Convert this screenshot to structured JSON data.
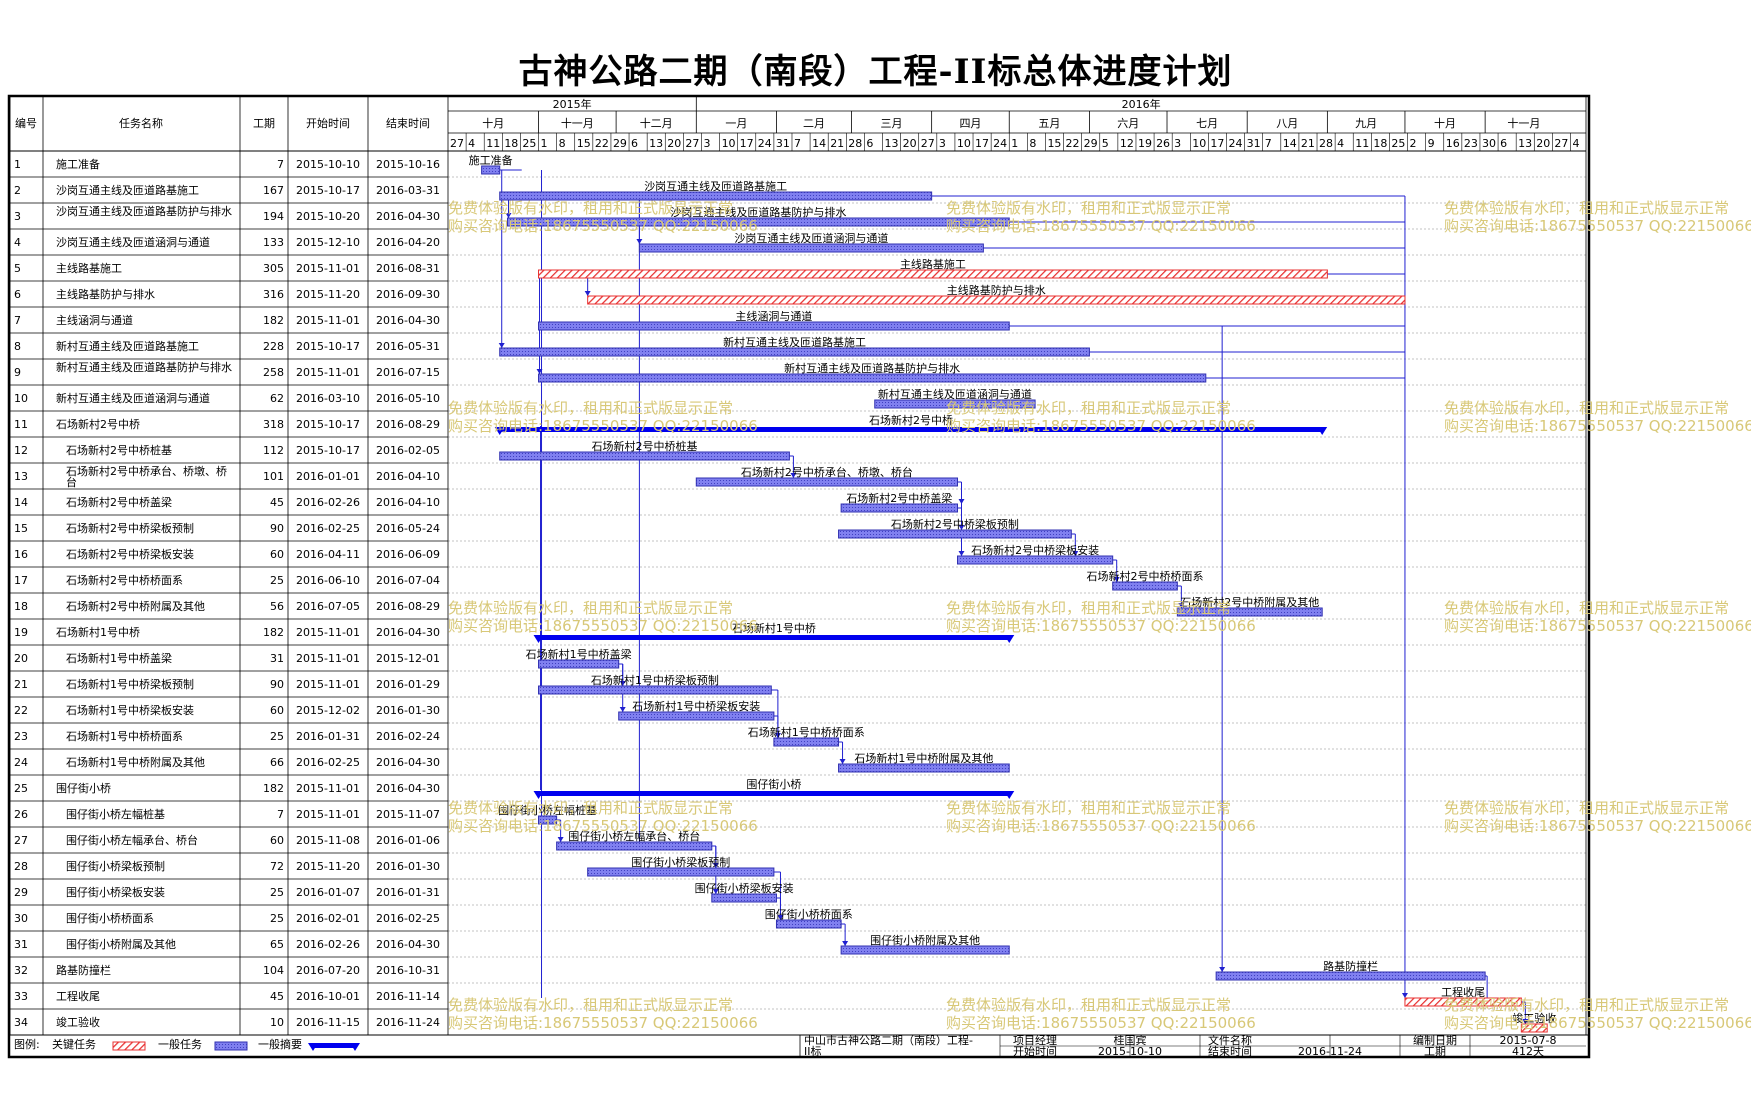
{
  "title": "古神公路二期（南段）工程-II标总体进度计划",
  "columns": {
    "id": "编号",
    "name": "任务名称",
    "duration": "工期",
    "start": "开始时间",
    "end": "结束时间"
  },
  "timeline": {
    "years": [
      "2015年",
      "2016年"
    ],
    "months": [
      "十月",
      "十一月",
      "十二月",
      "一月",
      "二月",
      "三月",
      "四月",
      "五月",
      "六月",
      "七月",
      "八月",
      "九月",
      "十月",
      "十一月"
    ],
    "days": [
      "27",
      "4",
      "11",
      "18",
      "25",
      "1",
      "8",
      "15",
      "22",
      "29",
      "6",
      "13",
      "20",
      "27",
      "3",
      "10",
      "17",
      "24",
      "31",
      "7",
      "14",
      "21",
      "28",
      "6",
      "13",
      "20",
      "27",
      "3",
      "10",
      "17",
      "24",
      "1",
      "8",
      "15",
      "22",
      "29",
      "5",
      "12",
      "19",
      "26",
      "3",
      "10",
      "17",
      "24",
      "31",
      "7",
      "14",
      "21",
      "28",
      "4",
      "11",
      "18",
      "25",
      "2",
      "9",
      "16",
      "23",
      "30",
      "6",
      "13",
      "20",
      "27",
      "4"
    ]
  },
  "chart_data": {
    "type": "gantt",
    "x_axis": "date",
    "xlim": [
      "2015-09-27",
      "2016-12-10"
    ],
    "series_legend": [
      "关键任务",
      "一般任务",
      "一般摘要"
    ],
    "tasks": [
      {
        "id": "1",
        "name": "施工准备",
        "duration": "7",
        "start": "2015-10-10",
        "end": "2015-10-16",
        "type": "normal",
        "indent": 0
      },
      {
        "id": "2",
        "name": "沙岗互通主线及匝道路基施工",
        "duration": "167",
        "start": "2015-10-17",
        "end": "2016-03-31",
        "type": "normal",
        "indent": 0
      },
      {
        "id": "3",
        "name": "沙岗互通主线及匝道路基防护与排水",
        "duration": "194",
        "start": "2015-10-20",
        "end": "2016-04-30",
        "type": "normal",
        "indent": 0
      },
      {
        "id": "4",
        "name": "沙岗互通主线及匝道涵洞与通道",
        "duration": "133",
        "start": "2015-12-10",
        "end": "2016-04-20",
        "type": "normal",
        "indent": 0
      },
      {
        "id": "5",
        "name": "主线路基施工",
        "duration": "305",
        "start": "2015-11-01",
        "end": "2016-08-31",
        "type": "critical",
        "indent": 0
      },
      {
        "id": "6",
        "name": "主线路基防护与排水",
        "duration": "316",
        "start": "2015-11-20",
        "end": "2016-09-30",
        "type": "critical",
        "indent": 0
      },
      {
        "id": "7",
        "name": "主线涵洞与通道",
        "duration": "182",
        "start": "2015-11-01",
        "end": "2016-04-30",
        "type": "normal",
        "indent": 0
      },
      {
        "id": "8",
        "name": "新村互通主线及匝道路基施工",
        "duration": "228",
        "start": "2015-10-17",
        "end": "2016-05-31",
        "type": "normal",
        "indent": 0
      },
      {
        "id": "9",
        "name": "新村互通主线及匝道路基防护与排水",
        "duration": "258",
        "start": "2015-11-01",
        "end": "2016-07-15",
        "type": "normal",
        "indent": 0
      },
      {
        "id": "10",
        "name": "新村互通主线及匝道涵洞与通道",
        "duration": "62",
        "start": "2016-03-10",
        "end": "2016-05-10",
        "type": "normal",
        "indent": 0
      },
      {
        "id": "11",
        "name": "石场新村2号中桥",
        "duration": "318",
        "start": "2015-10-17",
        "end": "2016-08-29",
        "type": "summary",
        "indent": 0
      },
      {
        "id": "12",
        "name": "石场新村2号中桥桩基",
        "duration": "112",
        "start": "2015-10-17",
        "end": "2016-02-05",
        "type": "normal",
        "indent": 1
      },
      {
        "id": "13",
        "name": "石场新村2号中桥承台、桥墩、桥台",
        "duration": "101",
        "start": "2016-01-01",
        "end": "2016-04-10",
        "type": "normal",
        "indent": 1
      },
      {
        "id": "14",
        "name": "石场新村2号中桥盖梁",
        "duration": "45",
        "start": "2016-02-26",
        "end": "2016-04-10",
        "type": "normal",
        "indent": 1
      },
      {
        "id": "15",
        "name": "石场新村2号中桥梁板预制",
        "duration": "90",
        "start": "2016-02-25",
        "end": "2016-05-24",
        "type": "normal",
        "indent": 1
      },
      {
        "id": "16",
        "name": "石场新村2号中桥梁板安装",
        "duration": "60",
        "start": "2016-04-11",
        "end": "2016-06-09",
        "type": "normal",
        "indent": 1
      },
      {
        "id": "17",
        "name": "石场新村2号中桥桥面系",
        "duration": "25",
        "start": "2016-06-10",
        "end": "2016-07-04",
        "type": "normal",
        "indent": 1
      },
      {
        "id": "18",
        "name": "石场新村2号中桥附属及其他",
        "duration": "56",
        "start": "2016-07-05",
        "end": "2016-08-29",
        "type": "normal",
        "indent": 1
      },
      {
        "id": "19",
        "name": "石场新村1号中桥",
        "duration": "182",
        "start": "2015-11-01",
        "end": "2016-04-30",
        "type": "summary",
        "indent": 0
      },
      {
        "id": "20",
        "name": "石场新村1号中桥盖梁",
        "duration": "31",
        "start": "2015-11-01",
        "end": "2015-12-01",
        "type": "normal",
        "indent": 1
      },
      {
        "id": "21",
        "name": "石场新村1号中桥梁板预制",
        "duration": "90",
        "start": "2015-11-01",
        "end": "2016-01-29",
        "type": "normal",
        "indent": 1
      },
      {
        "id": "22",
        "name": "石场新村1号中桥梁板安装",
        "duration": "60",
        "start": "2015-12-02",
        "end": "2016-01-30",
        "type": "normal",
        "indent": 1
      },
      {
        "id": "23",
        "name": "石场新村1号中桥桥面系",
        "duration": "25",
        "start": "2016-01-31",
        "end": "2016-02-24",
        "type": "normal",
        "indent": 1
      },
      {
        "id": "24",
        "name": "石场新村1号中桥附属及其他",
        "duration": "66",
        "start": "2016-02-25",
        "end": "2016-04-30",
        "type": "normal",
        "indent": 1
      },
      {
        "id": "25",
        "name": "围仔街小桥",
        "duration": "182",
        "start": "2015-11-01",
        "end": "2016-04-30",
        "type": "summary",
        "indent": 0
      },
      {
        "id": "26",
        "name": "围仔街小桥左幅桩基",
        "duration": "7",
        "start": "2015-11-01",
        "end": "2015-11-07",
        "type": "normal",
        "indent": 1
      },
      {
        "id": "27",
        "name": "围仔街小桥左幅承台、桥台",
        "duration": "60",
        "start": "2015-11-08",
        "end": "2016-01-06",
        "type": "normal",
        "indent": 1
      },
      {
        "id": "28",
        "name": "围仔街小桥梁板预制",
        "duration": "72",
        "start": "2015-11-20",
        "end": "2016-01-30",
        "type": "normal",
        "indent": 1
      },
      {
        "id": "29",
        "name": "围仔街小桥梁板安装",
        "duration": "25",
        "start": "2016-01-07",
        "end": "2016-01-31",
        "type": "normal",
        "indent": 1
      },
      {
        "id": "30",
        "name": "围仔街小桥桥面系",
        "duration": "25",
        "start": "2016-02-01",
        "end": "2016-02-25",
        "type": "normal",
        "indent": 1
      },
      {
        "id": "31",
        "name": "围仔街小桥附属及其他",
        "duration": "65",
        "start": "2016-02-26",
        "end": "2016-04-30",
        "type": "normal",
        "indent": 1
      },
      {
        "id": "32",
        "name": "路基防撞栏",
        "duration": "104",
        "start": "2016-07-20",
        "end": "2016-10-31",
        "type": "normal",
        "indent": 0
      },
      {
        "id": "33",
        "name": "工程收尾",
        "duration": "45",
        "start": "2016-10-01",
        "end": "2016-11-14",
        "type": "critical",
        "indent": 0
      },
      {
        "id": "34",
        "name": "竣工验收",
        "duration": "10",
        "start": "2016-11-15",
        "end": "2016-11-24",
        "type": "critical",
        "indent": 0
      }
    ]
  },
  "watermark": {
    "line1": "免费体验版有水印，租用和正式版显示正常",
    "line2": "购买咨询电话:18675550537 QQ:22150066"
  },
  "footer": {
    "legend_label": "图例:",
    "legend_critical": "关键任务",
    "legend_normal": "一般任务",
    "legend_summary": "一般摘要",
    "project_name": "中山市古神公路二期（南段）工程-II标",
    "pm_label": "项目经理",
    "pm_value": "桂国宾",
    "doc_label": "文件名称",
    "doc_value": "",
    "date_label": "编制日期",
    "date_value": "2015-07-8",
    "start_label": "开始时间",
    "start_value": "2015-10-10",
    "end_label": "结束时间",
    "end_value": "2016-11-24",
    "dur_label": "工期",
    "dur_value": "412天"
  },
  "colors": {
    "normal_bar": "#6a6ae8",
    "critical_bar": "#e83030",
    "summary_bar": "#0000ee",
    "link_line": "#2020d0",
    "watermark": "#d8c878"
  }
}
